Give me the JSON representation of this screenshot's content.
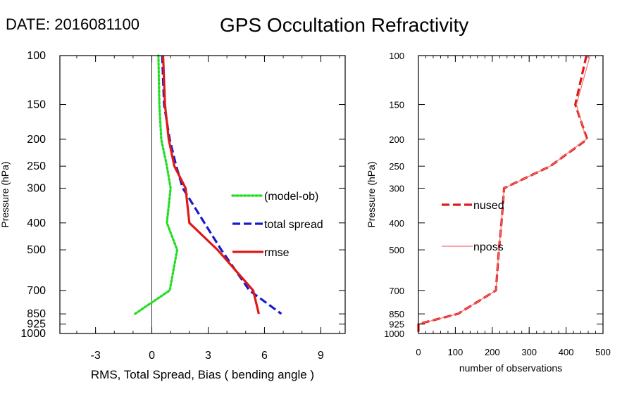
{
  "header": {
    "date_label": "DATE: 2016081100",
    "title": "GPS Occultation Refractivity"
  },
  "colors": {
    "model_ob": "#22dd22",
    "total_spread": "#1a1acc",
    "rmse": "#e01818",
    "nused": "#e01818",
    "nposs": "#f07070"
  },
  "chart_data": [
    {
      "type": "line",
      "xlabel": "RMS, Total Spread, Bias ( bending angle )",
      "ylabel": "Pressure (hPa)",
      "xlim": [
        -4.9,
        10.3
      ],
      "ylim": [
        1000,
        100
      ],
      "y_scale": "log",
      "x_ticks": [
        -3,
        0,
        3,
        6,
        9
      ],
      "x_tick_labels": [
        "-3",
        "0",
        "3",
        "6",
        "9"
      ],
      "y_ticks": [
        100,
        150,
        200,
        250,
        300,
        400,
        500,
        700,
        850,
        925,
        1000
      ],
      "y_tick_labels": [
        "100",
        "150",
        "200",
        "250",
        "300",
        "400",
        "500",
        "700",
        "850",
        "925",
        "1000"
      ],
      "zero_line": 0,
      "legend_position": "right-center",
      "series": [
        {
          "name": "(model-ob)",
          "style": "dotted",
          "color_key": "model_ob",
          "points": [
            [
              0.35,
              100
            ],
            [
              0.4,
              150
            ],
            [
              0.5,
              200
            ],
            [
              0.8,
              250
            ],
            [
              1.0,
              300
            ],
            [
              0.8,
              400
            ],
            [
              1.35,
              500
            ],
            [
              0.95,
              700
            ],
            [
              -0.9,
              850
            ]
          ]
        },
        {
          "name": "total spread",
          "style": "dashed",
          "color_key": "total_spread",
          "points": [
            [
              0.55,
              100
            ],
            [
              0.65,
              150
            ],
            [
              0.95,
              200
            ],
            [
              1.3,
              250
            ],
            [
              1.65,
              300
            ],
            [
              2.8,
              400
            ],
            [
              3.7,
              500
            ],
            [
              5.2,
              700
            ],
            [
              6.9,
              850
            ]
          ]
        },
        {
          "name": "rmse",
          "style": "solid",
          "color_key": "rmse",
          "points": [
            [
              0.6,
              100
            ],
            [
              0.7,
              150
            ],
            [
              0.9,
              200
            ],
            [
              1.2,
              250
            ],
            [
              1.8,
              300
            ],
            [
              2.0,
              400
            ],
            [
              3.5,
              500
            ],
            [
              5.4,
              700
            ],
            [
              5.7,
              850
            ]
          ]
        }
      ]
    },
    {
      "type": "line",
      "xlabel": "number of observations",
      "ylabel": "Pressure (hPa)",
      "xlim": [
        0,
        500
      ],
      "ylim": [
        1000,
        100
      ],
      "y_scale": "log",
      "x_ticks": [
        0,
        100,
        200,
        300,
        400,
        500
      ],
      "x_tick_labels": [
        "0",
        "100",
        "200",
        "300",
        "400",
        "500"
      ],
      "y_ticks": [
        100,
        150,
        200,
        250,
        300,
        400,
        500,
        700,
        850,
        925,
        1000
      ],
      "y_tick_labels": [
        "100",
        "150",
        "200",
        "250",
        "300",
        "400",
        "500",
        "700",
        "850",
        "925",
        "1000"
      ],
      "legend_position": "left-center",
      "series": [
        {
          "name": "nused",
          "style": "dashed",
          "color_key": "nused",
          "points": [
            [
              455,
              100
            ],
            [
              425,
              150
            ],
            [
              457,
              200
            ],
            [
              357,
              250
            ],
            [
              232,
              300
            ],
            [
              225,
              400
            ],
            [
              218,
              500
            ],
            [
              210,
              700
            ],
            [
              107,
              850
            ],
            [
              0,
              925
            ],
            [
              0,
              1000
            ]
          ]
        },
        {
          "name": "nposs",
          "style": "solid",
          "color_key": "nposs",
          "points": [
            [
              465,
              100
            ],
            [
              428,
              150
            ],
            [
              455,
              200
            ],
            [
              357,
              250
            ],
            [
              232,
              300
            ],
            [
              225,
              400
            ],
            [
              218,
              500
            ],
            [
              210,
              700
            ],
            [
              107,
              850
            ],
            [
              0,
              925
            ],
            [
              0,
              1000
            ]
          ]
        }
      ]
    }
  ]
}
